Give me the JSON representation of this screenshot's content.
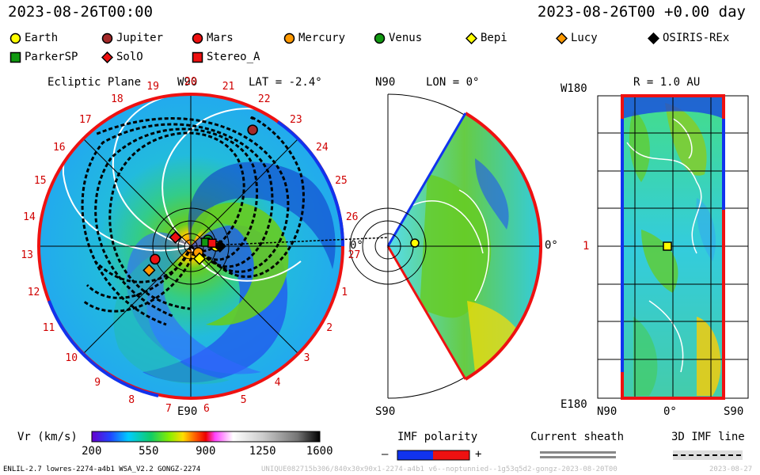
{
  "header": {
    "timestamp_left": "2023-08-26T00:00",
    "timestamp_right": "2023-08-26T00 +0.00 day"
  },
  "legend": [
    {
      "name": "Earth",
      "marker": "circle",
      "color": "#ffff00"
    },
    {
      "name": "Jupiter",
      "marker": "circle",
      "color": "#a52a2a"
    },
    {
      "name": "Mars",
      "marker": "circle",
      "color": "#ee1111"
    },
    {
      "name": "Mercury",
      "marker": "circle",
      "color": "#ff9900"
    },
    {
      "name": "Venus",
      "marker": "circle",
      "color": "#119911"
    },
    {
      "name": "Bepi",
      "marker": "diamond",
      "color": "#ffff00"
    },
    {
      "name": "Lucy",
      "marker": "diamond",
      "color": "#ff9900"
    },
    {
      "name": "OSIRIS-REx",
      "marker": "diamond",
      "color": "#000000"
    },
    {
      "name": "ParkerSP",
      "marker": "square",
      "color": "#119911"
    },
    {
      "name": "SolO",
      "marker": "diamond",
      "color": "#ee1111"
    },
    {
      "name": "Stereo_A",
      "marker": "square",
      "color": "#ee1111"
    }
  ],
  "panels": {
    "ecliptic": {
      "title": "Ecliptic Plane",
      "top_label": "W90",
      "lat_label": "LAT = -2.4°",
      "bottom_label": "E90",
      "right_label": "0°",
      "carrington_labels": [
        "20",
        "21",
        "22",
        "23",
        "24",
        "25",
        "26",
        "27",
        "1",
        "2",
        "3",
        "4",
        "5",
        "6",
        "7",
        "8",
        "9",
        "10",
        "11",
        "12",
        "13",
        "14",
        "15",
        "16",
        "17",
        "18",
        "19"
      ]
    },
    "meridional": {
      "top_label": "N90",
      "lon_label": "LON = 0°",
      "bottom_label": "S90",
      "right_label": "0°"
    },
    "radial": {
      "title": "R = 1.0 AU",
      "top_label": "W180",
      "bottom_label": "E180",
      "mid_label": "1",
      "axis_left": "N90",
      "axis_mid": "0°",
      "axis_right": "S90"
    }
  },
  "colorbar": {
    "label": "Vr (km/s)",
    "ticks": [
      "200",
      "550",
      "900",
      "1250",
      "1600"
    ],
    "range": [
      200,
      1600
    ]
  },
  "imf_legend": {
    "title": "IMF polarity",
    "minus": "–",
    "plus": "+"
  },
  "sheath_legend": {
    "title": "Current sheath"
  },
  "imf3d_legend": {
    "title": "3D IMF line"
  },
  "footer": {
    "model_info": "ENLIL-2.7 lowres-2274-a4b1 WSA_V2.2 GONGZ-2274",
    "watermark": "UNIQUE082715b306/840x30x90x1-2274-a4b1 v6--noptunnied--1g53q5d2-gongz-2023-08-20T00",
    "watermark_right": "2023-08-27"
  },
  "chart_data": {
    "type": "heatmap",
    "title": "2023-08-26T00:00",
    "variable": "Vr (km/s)",
    "vmin": 200,
    "vmax": 1600,
    "bodies_ecliptic": [
      {
        "name": "Earth",
        "angle_deg": 0,
        "r_au": 1.0
      },
      {
        "name": "Jupiter",
        "angle_deg": 62,
        "r_au": 5.2
      },
      {
        "name": "Mars",
        "angle_deg": -160,
        "r_au": 1.5
      },
      {
        "name": "Mercury",
        "angle_deg": -40,
        "r_au": 0.38
      },
      {
        "name": "Venus",
        "angle_deg": 20,
        "r_au": 0.72
      },
      {
        "name": "Bepi",
        "angle_deg": -55,
        "r_au": 0.6
      },
      {
        "name": "Lucy",
        "angle_deg": -150,
        "r_au": 1.9
      },
      {
        "name": "OSIRIS-REx",
        "angle_deg": 0,
        "r_au": 1.15
      },
      {
        "name": "ParkerSP",
        "angle_deg": 15,
        "r_au": 0.6
      },
      {
        "name": "SolO",
        "angle_deg": 150,
        "r_au": 0.7
      },
      {
        "name": "Stereo_A",
        "angle_deg": 8,
        "r_au": 0.85
      }
    ]
  }
}
